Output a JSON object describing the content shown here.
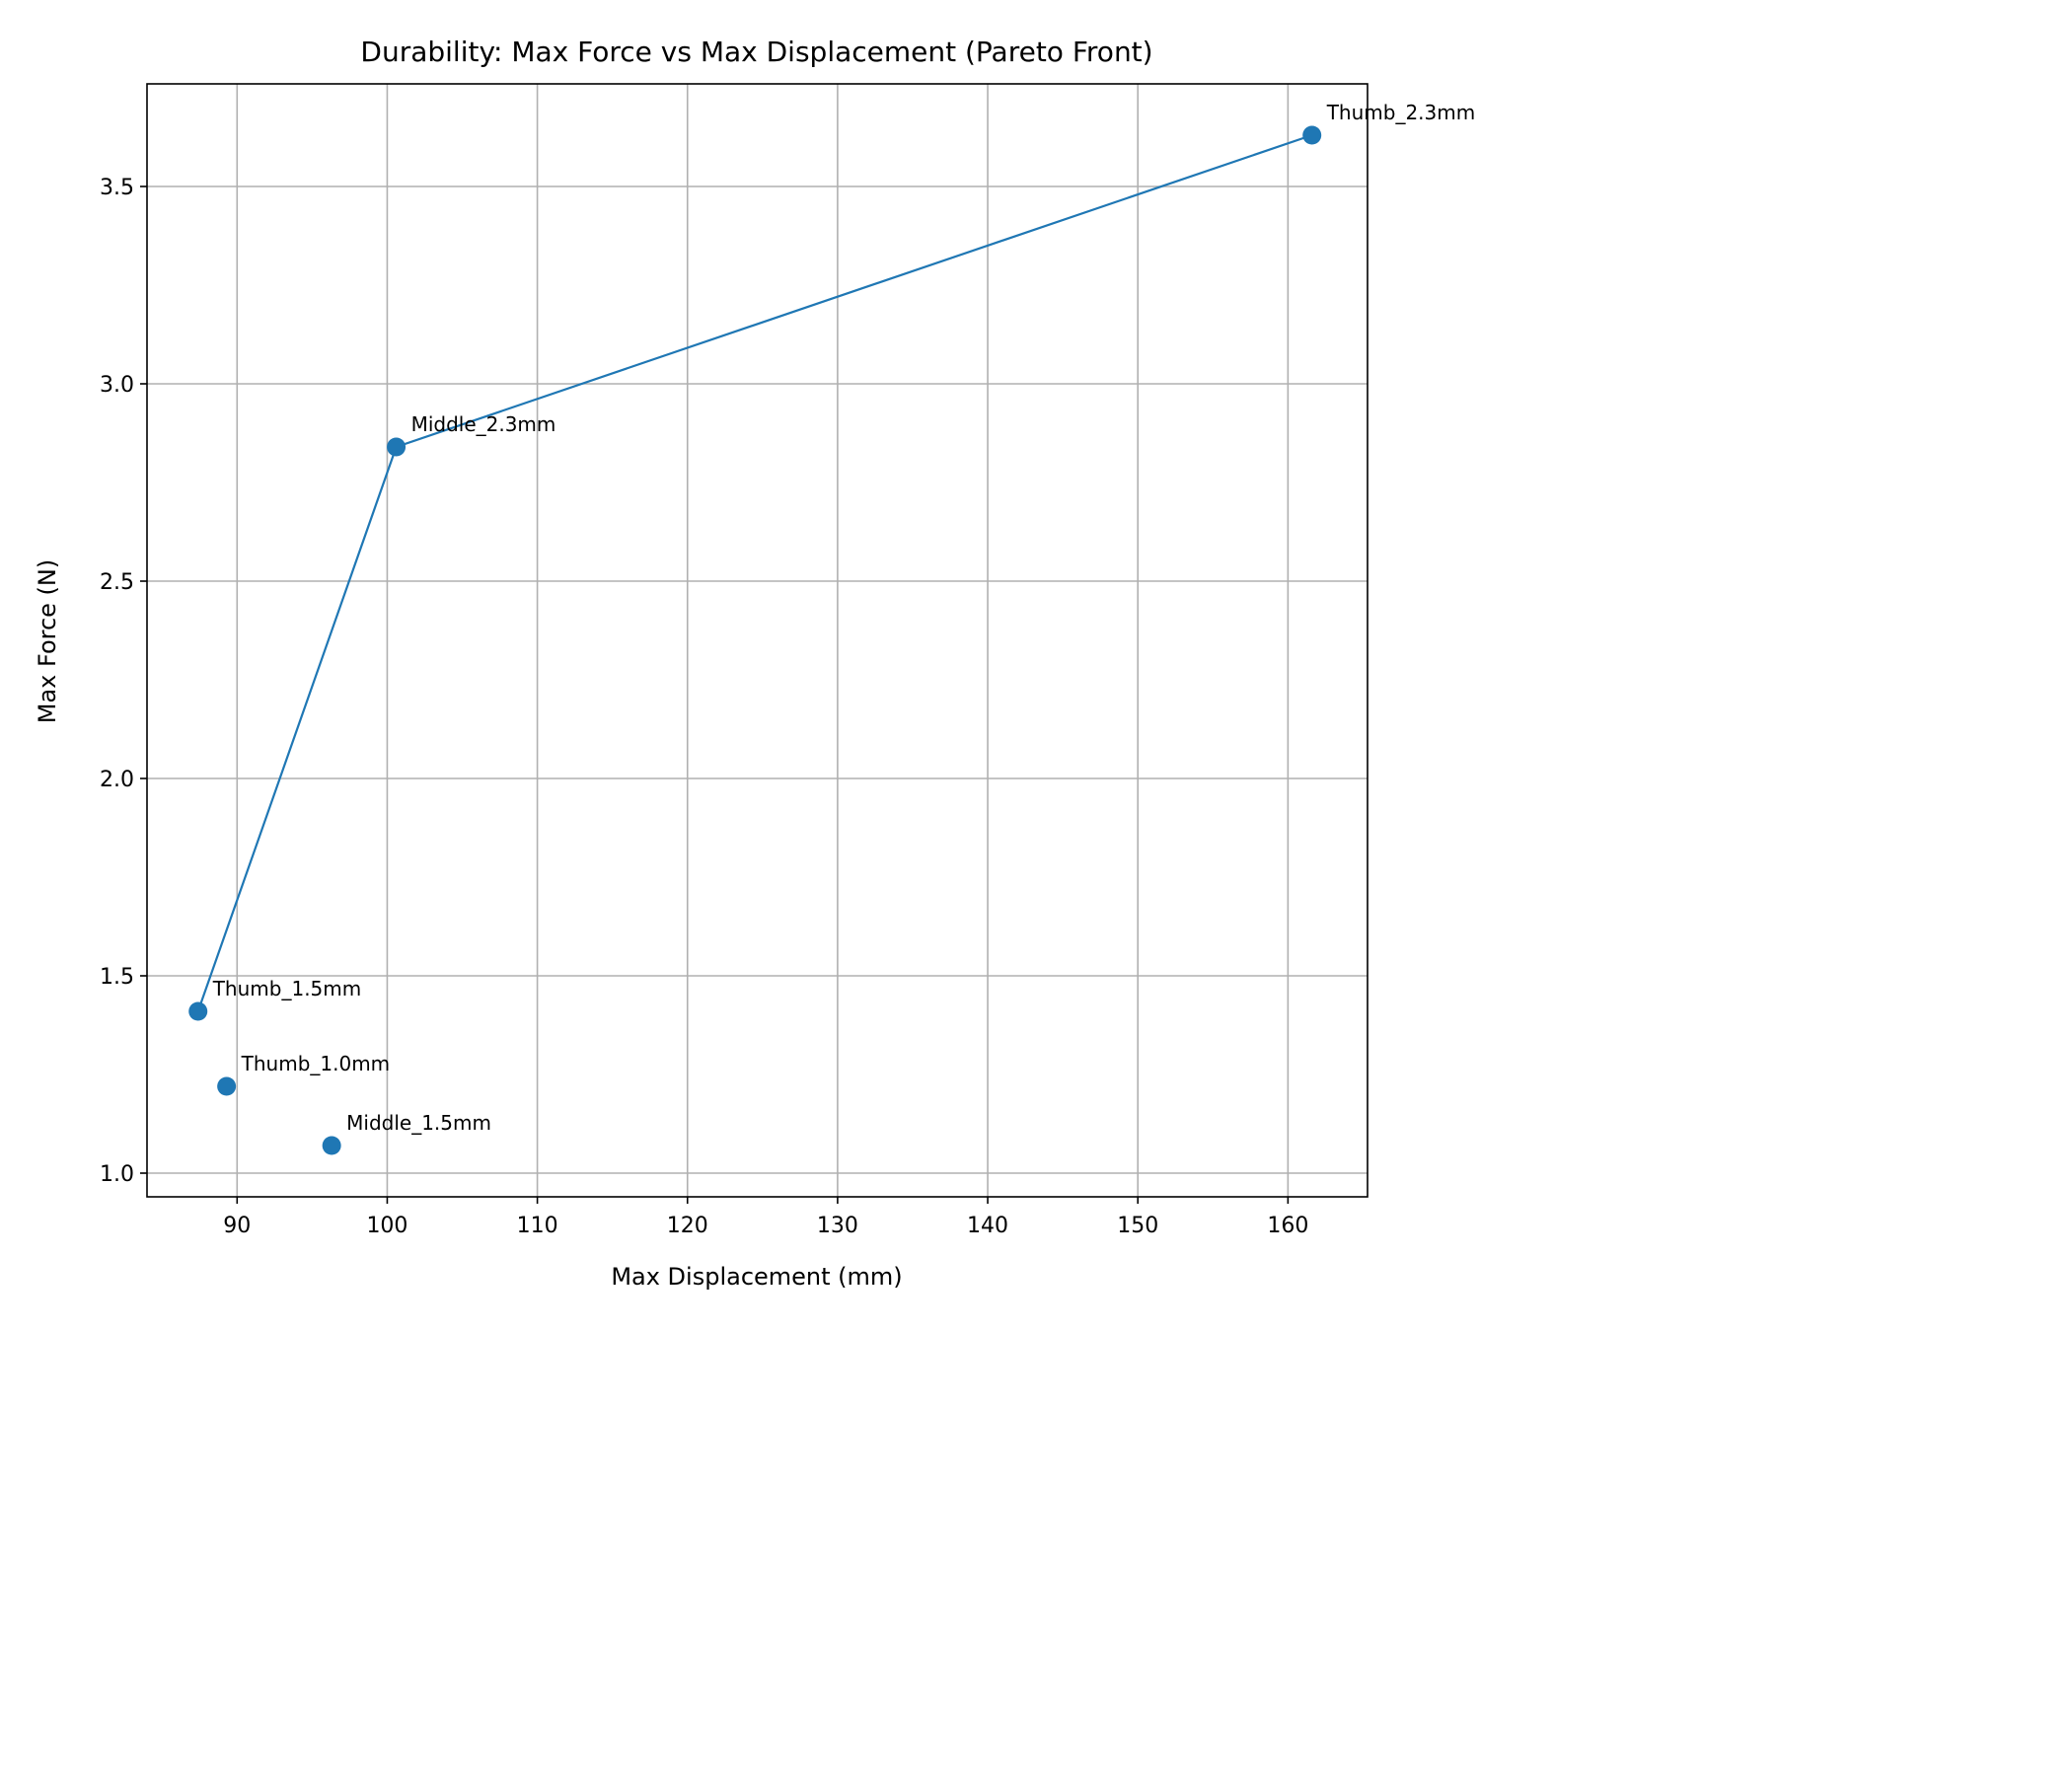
{
  "chart_data": {
    "type": "scatter",
    "title": "Durability: Max Force vs Max Displacement (Pareto Front)",
    "xlabel": "Max Displacement (mm)",
    "ylabel": "Max Force (N)",
    "xlim": [
      84,
      165.3
    ],
    "ylim": [
      0.94,
      3.76
    ],
    "xticks": [
      90,
      100,
      110,
      120,
      130,
      140,
      150,
      160
    ],
    "yticks": [
      1.0,
      1.5,
      2.0,
      2.5,
      3.0,
      3.5
    ],
    "xtick_labels": [
      "90",
      "100",
      "110",
      "120",
      "130",
      "140",
      "150",
      "160"
    ],
    "ytick_labels": [
      "1.0",
      "1.5",
      "2.0",
      "2.5",
      "3.0",
      "3.5"
    ],
    "grid": true,
    "legend": "none",
    "points": [
      {
        "label": "Thumb_1.5mm",
        "x": 87.4,
        "y": 1.41
      },
      {
        "label": "Thumb_1.0mm",
        "x": 89.3,
        "y": 1.22
      },
      {
        "label": "Middle_1.5mm",
        "x": 96.3,
        "y": 1.07
      },
      {
        "label": "Middle_2.3mm",
        "x": 100.6,
        "y": 2.84
      },
      {
        "label": "Thumb_2.3mm",
        "x": 161.6,
        "y": 3.63
      }
    ],
    "pareto_front": [
      "Thumb_1.5mm",
      "Middle_2.3mm",
      "Thumb_2.3mm"
    ],
    "colors": {
      "series": "#1f77b4",
      "grid": "#b0b0b0",
      "axes": "#000000"
    }
  }
}
